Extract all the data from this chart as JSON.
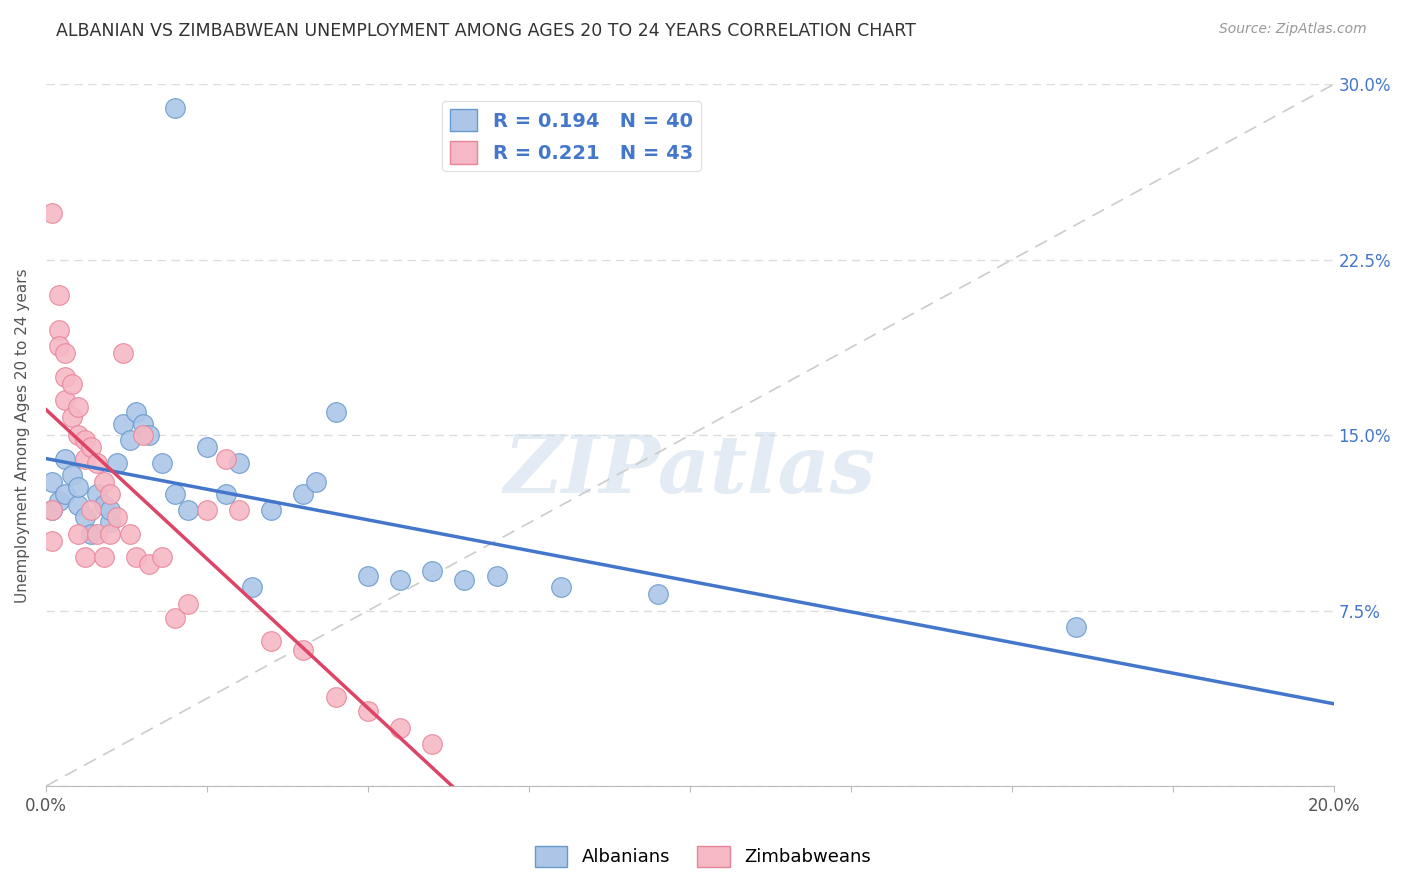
{
  "title": "ALBANIAN VS ZIMBABWEAN UNEMPLOYMENT AMONG AGES 20 TO 24 YEARS CORRELATION CHART",
  "source": "Source: ZipAtlas.com",
  "ylabel": "Unemployment Among Ages 20 to 24 years",
  "xlim": [
    0.0,
    0.2
  ],
  "ylim": [
    0.0,
    0.3
  ],
  "xticks": [
    0.0,
    0.025,
    0.05,
    0.075,
    0.1,
    0.125,
    0.15,
    0.175,
    0.2
  ],
  "xticklabels_show": {
    "0.0": "0.0%",
    "0.20": "20.0%"
  },
  "yticks": [
    0.0,
    0.075,
    0.15,
    0.225,
    0.3
  ],
  "yticklabels_right": [
    "",
    "7.5%",
    "15.0%",
    "22.5%",
    "30.0%"
  ],
  "watermark": "ZIPatlas",
  "albanian_color": "#adc6e8",
  "albanian_edge": "#6699cc",
  "zimbabwean_color": "#f5b8c4",
  "zimbabwean_edge": "#e8849a",
  "trend_albanian_color": "#4477cc",
  "trend_zimbabwean_color": "#dd4466",
  "diagonal_color": "#cccccc",
  "R_albanian": "R = 0.194",
  "N_albanian": "N = 40",
  "R_zimbabwean": "R = 0.221",
  "N_zimbabwean": "N = 43",
  "legend_label_albanian": "Albanians",
  "legend_label_zimbabwean": "Zimbabweans",
  "albanian_x": [
    0.001,
    0.001,
    0.002,
    0.003,
    0.003,
    0.004,
    0.005,
    0.005,
    0.006,
    0.007,
    0.008,
    0.009,
    0.01,
    0.01,
    0.011,
    0.012,
    0.013,
    0.014,
    0.015,
    0.016,
    0.018,
    0.02,
    0.022,
    0.025,
    0.028,
    0.03,
    0.032,
    0.035,
    0.04,
    0.042,
    0.045,
    0.05,
    0.055,
    0.06,
    0.065,
    0.07,
    0.08,
    0.095,
    0.16,
    0.02
  ],
  "albanian_y": [
    0.13,
    0.118,
    0.122,
    0.125,
    0.14,
    0.133,
    0.12,
    0.128,
    0.115,
    0.108,
    0.125,
    0.12,
    0.113,
    0.118,
    0.138,
    0.155,
    0.148,
    0.16,
    0.155,
    0.15,
    0.138,
    0.125,
    0.118,
    0.145,
    0.125,
    0.138,
    0.085,
    0.118,
    0.125,
    0.13,
    0.16,
    0.09,
    0.088,
    0.092,
    0.088,
    0.09,
    0.085,
    0.082,
    0.068,
    0.29
  ],
  "zimbabwean_x": [
    0.001,
    0.001,
    0.001,
    0.002,
    0.002,
    0.002,
    0.003,
    0.003,
    0.003,
    0.004,
    0.004,
    0.005,
    0.005,
    0.005,
    0.006,
    0.006,
    0.006,
    0.007,
    0.007,
    0.008,
    0.008,
    0.009,
    0.009,
    0.01,
    0.01,
    0.011,
    0.012,
    0.013,
    0.014,
    0.015,
    0.016,
    0.018,
    0.02,
    0.022,
    0.025,
    0.028,
    0.03,
    0.035,
    0.04,
    0.045,
    0.05,
    0.055,
    0.06
  ],
  "zimbabwean_y": [
    0.245,
    0.118,
    0.105,
    0.21,
    0.195,
    0.188,
    0.185,
    0.175,
    0.165,
    0.172,
    0.158,
    0.162,
    0.15,
    0.108,
    0.148,
    0.14,
    0.098,
    0.145,
    0.118,
    0.138,
    0.108,
    0.13,
    0.098,
    0.125,
    0.108,
    0.115,
    0.185,
    0.108,
    0.098,
    0.15,
    0.095,
    0.098,
    0.072,
    0.078,
    0.118,
    0.14,
    0.118,
    0.062,
    0.058,
    0.038,
    0.032,
    0.025,
    0.018
  ]
}
